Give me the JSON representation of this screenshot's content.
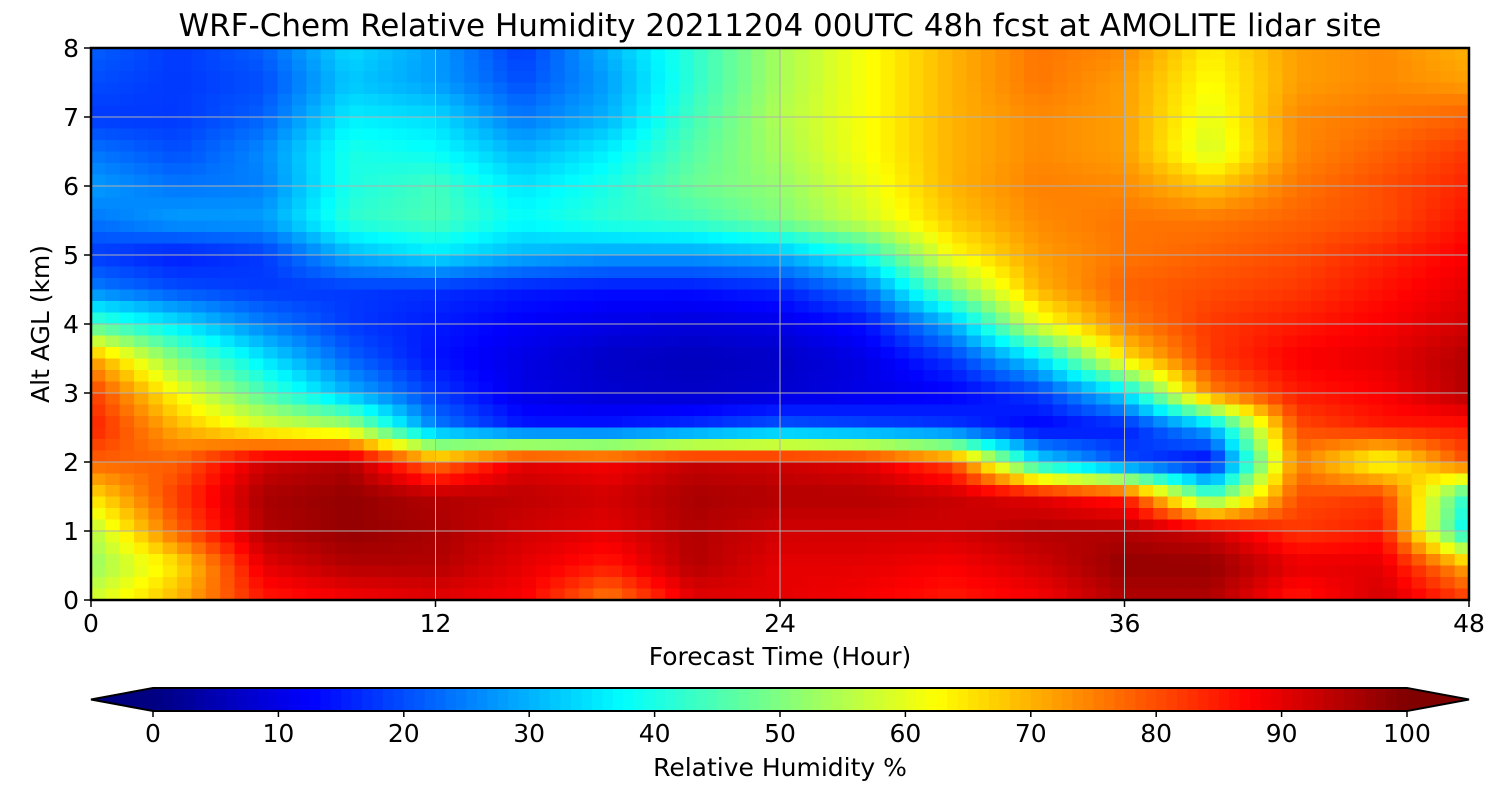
{
  "chart_data": {
    "type": "heatmap",
    "title": "WRF-Chem Relative Humidity 20211204 00UTC 48h fcst at AMOLITE lidar site",
    "xlabel": "Forecast Time (Hour)",
    "ylabel": "Alt AGL (km)",
    "xlim": [
      0,
      48
    ],
    "ylim": [
      0,
      8
    ],
    "xticks": [
      0,
      12,
      24,
      36,
      48
    ],
    "yticks": [
      0,
      1,
      2,
      3,
      4,
      5,
      6,
      7,
      8
    ],
    "grid": true,
    "colorbar": {
      "label": "Relative Humidity %",
      "ticks": [
        0,
        10,
        20,
        30,
        40,
        50,
        60,
        70,
        80,
        90,
        100
      ],
      "range": [
        0,
        100
      ],
      "colormap": "jet",
      "extend": "both",
      "orientation": "horizontal"
    },
    "x": [
      0,
      3,
      6,
      9,
      12,
      15,
      18,
      21,
      24,
      27,
      30,
      33,
      36,
      39,
      42,
      45,
      48
    ],
    "y": [
      0,
      0.5,
      1,
      1.5,
      2,
      2.5,
      3,
      3.5,
      4,
      4.5,
      5,
      5.5,
      6,
      6.5,
      7,
      7.5,
      8
    ],
    "z": [
      [
        58,
        70,
        85,
        88,
        90,
        88,
        75,
        90,
        90,
        88,
        85,
        88,
        95,
        95,
        85,
        92,
        82
      ],
      [
        52,
        65,
        90,
        95,
        95,
        90,
        85,
        95,
        90,
        90,
        88,
        92,
        98,
        98,
        90,
        90,
        70
      ],
      [
        55,
        78,
        95,
        98,
        96,
        92,
        90,
        95,
        92,
        92,
        92,
        95,
        95,
        92,
        82,
        85,
        35
      ],
      [
        65,
        82,
        96,
        98,
        95,
        94,
        92,
        96,
        95,
        95,
        93,
        90,
        85,
        45,
        80,
        82,
        40
      ],
      [
        78,
        78,
        92,
        95,
        75,
        90,
        88,
        93,
        92,
        90,
        80,
        35,
        20,
        12,
        75,
        60,
        80
      ],
      [
        85,
        70,
        60,
        55,
        25,
        15,
        15,
        18,
        22,
        20,
        18,
        12,
        15,
        30,
        80,
        85,
        85
      ],
      [
        82,
        62,
        45,
        30,
        18,
        10,
        8,
        7,
        8,
        10,
        12,
        18,
        35,
        75,
        85,
        88,
        95
      ],
      [
        72,
        50,
        35,
        22,
        14,
        10,
        7,
        6,
        7,
        10,
        18,
        35,
        65,
        82,
        88,
        90,
        95
      ],
      [
        45,
        35,
        25,
        18,
        15,
        12,
        10,
        9,
        10,
        14,
        30,
        60,
        75,
        82,
        85,
        88,
        92
      ],
      [
        25,
        20,
        18,
        18,
        17,
        15,
        14,
        14,
        16,
        24,
        50,
        70,
        78,
        80,
        82,
        86,
        90
      ],
      [
        18,
        15,
        18,
        30,
        35,
        30,
        28,
        28,
        30,
        40,
        62,
        72,
        76,
        78,
        80,
        84,
        88
      ],
      [
        24,
        28,
        28,
        42,
        45,
        38,
        42,
        44,
        50,
        58,
        68,
        74,
        76,
        76,
        78,
        80,
        86
      ],
      [
        28,
        24,
        25,
        40,
        44,
        35,
        40,
        48,
        52,
        60,
        70,
        75,
        74,
        68,
        76,
        80,
        84
      ],
      [
        24,
        20,
        26,
        40,
        38,
        30,
        36,
        46,
        54,
        62,
        70,
        74,
        72,
        58,
        74,
        78,
        82
      ],
      [
        18,
        18,
        22,
        36,
        34,
        24,
        30,
        44,
        55,
        62,
        70,
        74,
        72,
        60,
        74,
        76,
        78
      ],
      [
        20,
        18,
        20,
        32,
        28,
        20,
        28,
        42,
        54,
        62,
        70,
        76,
        72,
        62,
        72,
        74,
        72
      ],
      [
        22,
        18,
        22,
        34,
        28,
        18,
        30,
        42,
        54,
        62,
        70,
        76,
        74,
        64,
        72,
        74,
        70
      ]
    ]
  }
}
